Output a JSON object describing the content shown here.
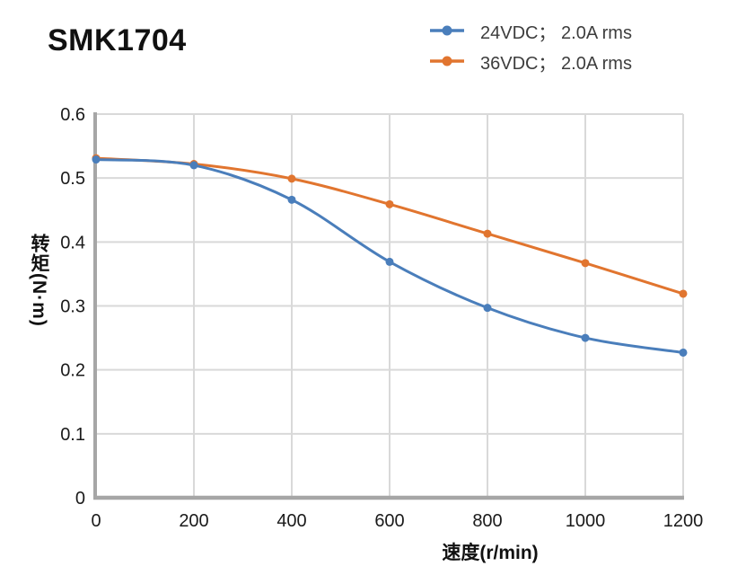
{
  "page": {
    "title": "SMK1704",
    "background": "#ffffff"
  },
  "colors": {
    "series_24vdc": "#4A7EBB",
    "series_36vdc": "#E1752F",
    "gridline": "#D9D9D9",
    "axis_spine": "#A6A6A6",
    "tick_text": "#1A1A1A",
    "legend_text": "#3D3D3D",
    "title_text": "#111111"
  },
  "chart_data": {
    "type": "line",
    "title": "SMK1704",
    "xlabel": "速度(r/min)",
    "ylabel": "转矩(N·m)",
    "x": [
      0,
      200,
      400,
      600,
      800,
      1000,
      1200
    ],
    "series": [
      {
        "name": "24VDC； 2.0A rms",
        "color": "#4A7EBB",
        "values": [
          0.529,
          0.52,
          0.466,
          0.369,
          0.297,
          0.25,
          0.227
        ]
      },
      {
        "name": "36VDC； 2.0A rms",
        "color": "#E1752F",
        "values": [
          0.531,
          0.522,
          0.499,
          0.459,
          0.413,
          0.367,
          0.319
        ]
      }
    ],
    "xlim": [
      0,
      1200
    ],
    "ylim": [
      0,
      0.6
    ],
    "x_ticks": [
      0,
      200,
      400,
      600,
      800,
      1000,
      1200
    ],
    "x_tick_labels": [
      "0",
      "200",
      "400",
      "600",
      "800",
      "1000",
      "1200"
    ],
    "y_ticks": [
      0,
      0.1,
      0.2,
      0.3,
      0.4,
      0.5,
      0.6
    ],
    "y_tick_labels": [
      "0",
      "0.1",
      "0.2",
      "0.3",
      "0.4",
      "0.5",
      "0.6"
    ],
    "grid": true,
    "smooth": true,
    "legend_position": "top-right",
    "marker": "circle"
  }
}
